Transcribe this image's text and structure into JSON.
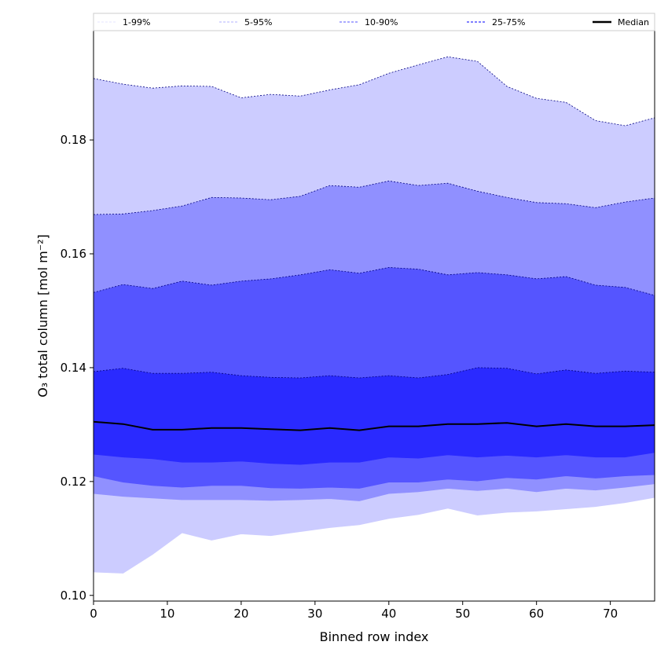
{
  "chart_data": {
    "type": "area",
    "title": "",
    "xlabel": "Binned row index",
    "ylabel": "O₃ total column [mol m⁻²]",
    "xlim": [
      0,
      76
    ],
    "ylim": [
      0.099,
      0.1992
    ],
    "xticks": [
      0,
      10,
      20,
      30,
      40,
      50,
      60,
      70
    ],
    "yticks": [
      0.1,
      0.12,
      0.14,
      0.16,
      0.18
    ],
    "ytick_labels": [
      "0.10",
      "0.12",
      "0.14",
      "0.16",
      "0.18"
    ],
    "legend_position": "top (above plot, full width)",
    "x": [
      0,
      4,
      8,
      12,
      16,
      20,
      24,
      28,
      32,
      36,
      40,
      44,
      48,
      52,
      56,
      60,
      64,
      68,
      72,
      76
    ],
    "bands": [
      {
        "name": "1-99%",
        "color": "#ccccff",
        "line_color": "#ccccff",
        "lower": [
          0.1041,
          0.1039,
          0.1072,
          0.111,
          0.1097,
          0.1108,
          0.1105,
          0.1112,
          0.1119,
          0.1124,
          0.1135,
          0.1142,
          0.1153,
          0.1141,
          0.1146,
          0.1148,
          0.1152,
          0.1156,
          0.1163,
          0.1172
        ],
        "upper": [
          0.1908,
          0.1898,
          0.1891,
          0.1895,
          0.1894,
          0.1874,
          0.188,
          0.1877,
          0.1888,
          0.1897,
          0.1917,
          0.1932,
          0.1946,
          0.1938,
          0.1894,
          0.1873,
          0.1866,
          0.1834,
          0.1825,
          0.1839
        ]
      },
      {
        "name": "5-95%",
        "color": "#9090ff",
        "line_color": "#9999ff",
        "lower": [
          0.1179,
          0.1174,
          0.1171,
          0.1168,
          0.1168,
          0.1168,
          0.1167,
          0.1168,
          0.117,
          0.1166,
          0.1179,
          0.1182,
          0.1188,
          0.1184,
          0.1188,
          0.1182,
          0.1188,
          0.1185,
          0.119,
          0.1196
        ],
        "upper": [
          0.1669,
          0.167,
          0.1676,
          0.1684,
          0.1699,
          0.1698,
          0.1695,
          0.1701,
          0.172,
          0.1717,
          0.1728,
          0.172,
          0.1724,
          0.171,
          0.1699,
          0.169,
          0.1688,
          0.1681,
          0.1691,
          0.1698
        ]
      },
      {
        "name": "10-90%",
        "color": "#5555ff",
        "line_color": "#7777ff",
        "lower": [
          0.121,
          0.1199,
          0.1193,
          0.119,
          0.1193,
          0.1193,
          0.1189,
          0.1188,
          0.119,
          0.1188,
          0.1199,
          0.1199,
          0.1204,
          0.1201,
          0.1207,
          0.1204,
          0.121,
          0.1206,
          0.121,
          0.1212
        ],
        "upper": [
          0.1532,
          0.1546,
          0.1539,
          0.1552,
          0.1545,
          0.1552,
          0.1556,
          0.1563,
          0.1572,
          0.1566,
          0.1576,
          0.1573,
          0.1563,
          0.1567,
          0.1563,
          0.1556,
          0.156,
          0.1545,
          0.1541,
          0.1527
        ]
      },
      {
        "name": "25-75%",
        "color": "#2a2aff",
        "line_color": "#5555ff",
        "lower": [
          0.1248,
          0.1243,
          0.124,
          0.1234,
          0.1234,
          0.1236,
          0.1232,
          0.123,
          0.1234,
          0.1234,
          0.1243,
          0.1241,
          0.1247,
          0.1243,
          0.1246,
          0.1243,
          0.1247,
          0.1243,
          0.1243,
          0.1251
        ],
        "upper": [
          0.1393,
          0.1399,
          0.139,
          0.139,
          0.1392,
          0.1386,
          0.1383,
          0.1382,
          0.1386,
          0.1382,
          0.1386,
          0.1382,
          0.1388,
          0.14,
          0.1399,
          0.1389,
          0.1396,
          0.139,
          0.1394,
          0.1392
        ]
      }
    ],
    "median": {
      "name": "Median",
      "color": "#000000",
      "values": [
        0.1305,
        0.1301,
        0.1291,
        0.1291,
        0.1294,
        0.1294,
        0.1292,
        0.129,
        0.1294,
        0.129,
        0.1297,
        0.1297,
        0.1301,
        0.1301,
        0.1303,
        0.1297,
        0.1301,
        0.1297,
        0.1297,
        0.1299
      ]
    }
  }
}
